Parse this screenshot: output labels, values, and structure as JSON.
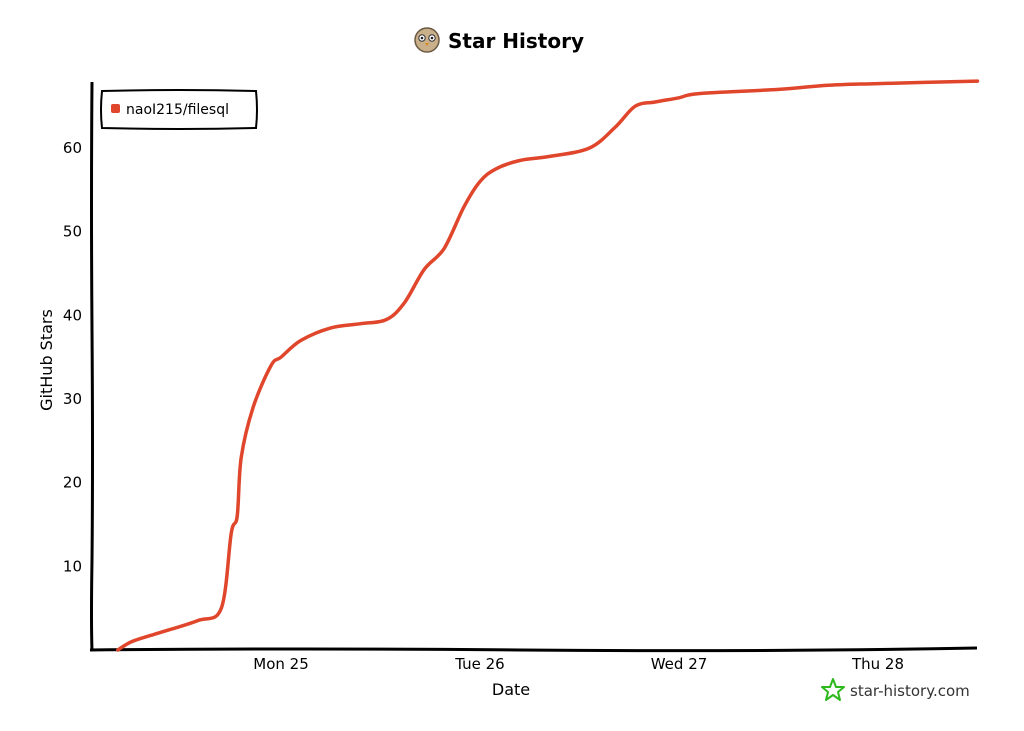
{
  "chart_data": {
    "type": "line",
    "title": "Star History",
    "xlabel": "Date",
    "ylabel": "GitHub Stars",
    "x_ticks": [
      "Mon 25",
      "Tue 26",
      "Wed 27",
      "Thu 28"
    ],
    "y_ticks": [
      10,
      20,
      30,
      40,
      50,
      60
    ],
    "ylim": [
      0,
      68
    ],
    "grid": false,
    "legend_position": "top-left",
    "series": [
      {
        "name": "naoI215/filesql",
        "color": "#e0462c",
        "x": [
          -0.82,
          -0.75,
          -0.62,
          -0.42,
          -0.3,
          -0.25,
          -0.22,
          -0.2,
          -0.14,
          -0.05,
          0.0,
          0.1,
          0.25,
          0.4,
          0.53,
          0.62,
          0.72,
          0.82,
          0.92,
          1.0,
          1.08,
          1.2,
          1.35,
          1.55,
          1.68,
          1.78,
          1.88,
          2.0,
          2.1,
          2.5,
          2.75,
          3.0,
          3.5
        ],
        "y": [
          0,
          1,
          2,
          3.5,
          5,
          14,
          16,
          23,
          29,
          34,
          35,
          37,
          38.5,
          39,
          39.5,
          41.5,
          45.5,
          48,
          53,
          56,
          57.5,
          58.5,
          59,
          60,
          62.5,
          65,
          65.5,
          66,
          66.5,
          67,
          67.5,
          67.7,
          68
        ]
      }
    ]
  },
  "watermark": {
    "text": "star-history.com",
    "icon": "star-icon",
    "color": "#2db81d"
  },
  "title_icon": "owl-avatar-icon"
}
